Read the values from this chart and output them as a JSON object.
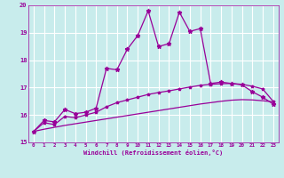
{
  "bg_color": "#c8ecec",
  "grid_color": "#ffffff",
  "line_color": "#990099",
  "xlim": [
    -0.5,
    23.5
  ],
  "ylim": [
    15,
    20
  ],
  "xticks": [
    0,
    1,
    2,
    3,
    4,
    5,
    6,
    7,
    8,
    9,
    10,
    11,
    12,
    13,
    14,
    15,
    16,
    17,
    18,
    19,
    20,
    21,
    22,
    23
  ],
  "yticks": [
    15,
    16,
    17,
    18,
    19,
    20
  ],
  "xlabel": "Windchill (Refroidissement éolien,°C)",
  "line1_x": [
    0,
    1,
    2,
    3,
    4,
    5,
    6,
    7,
    8,
    9,
    10,
    11,
    12,
    13,
    14,
    15,
    16,
    17,
    18,
    19,
    20,
    21,
    22,
    23
  ],
  "line1_y": [
    15.4,
    15.8,
    15.75,
    16.2,
    16.05,
    16.1,
    16.25,
    17.7,
    17.65,
    18.4,
    18.9,
    19.8,
    18.5,
    18.6,
    19.75,
    19.05,
    19.15,
    17.15,
    17.2,
    17.15,
    17.1,
    16.85,
    16.65,
    16.4
  ],
  "line2_x": [
    0,
    1,
    2,
    3,
    4,
    5,
    6,
    7,
    8,
    9,
    10,
    11,
    12,
    13,
    14,
    15,
    16,
    17,
    18,
    19,
    20,
    21,
    22,
    23
  ],
  "line2_y": [
    15.4,
    15.72,
    15.65,
    15.95,
    15.9,
    16.0,
    16.1,
    16.3,
    16.45,
    16.55,
    16.65,
    16.75,
    16.82,
    16.88,
    16.95,
    17.02,
    17.08,
    17.12,
    17.14,
    17.15,
    17.12,
    17.05,
    16.95,
    16.5
  ],
  "line3_x": [
    0,
    1,
    2,
    3,
    4,
    5,
    6,
    7,
    8,
    9,
    10,
    11,
    12,
    13,
    14,
    15,
    16,
    17,
    18,
    19,
    20,
    21,
    22,
    23
  ],
  "line3_y": [
    15.4,
    15.48,
    15.55,
    15.62,
    15.68,
    15.74,
    15.8,
    15.86,
    15.92,
    15.98,
    16.04,
    16.1,
    16.16,
    16.22,
    16.28,
    16.34,
    16.4,
    16.45,
    16.5,
    16.54,
    16.56,
    16.55,
    16.52,
    16.48
  ]
}
